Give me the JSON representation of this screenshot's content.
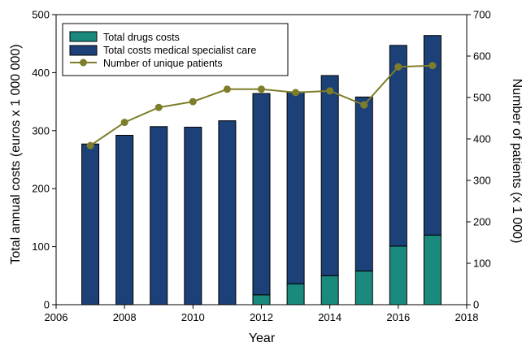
{
  "chart_data": {
    "type": "bar",
    "stacked": true,
    "x": [
      2007,
      2008,
      2009,
      2010,
      2011,
      2012,
      2013,
      2014,
      2015,
      2016,
      2017
    ],
    "xlabel": "Year",
    "xlim": [
      2006,
      2018
    ],
    "xticks": [
      2006,
      2008,
      2010,
      2012,
      2014,
      2016,
      2018
    ],
    "ylabel": "Total annual costs (euros x 1 000 000)",
    "ylim": [
      0,
      500
    ],
    "yticks": [
      0,
      100,
      200,
      300,
      400,
      500
    ],
    "y2label": "Number of patients (x 1 000)",
    "y2lim": [
      0,
      700
    ],
    "y2ticks": [
      0,
      100,
      200,
      300,
      400,
      500,
      600,
      700
    ],
    "series": [
      {
        "name": "Total drugs costs",
        "kind": "bar",
        "axis": "left",
        "color": "#1a8a7e",
        "values": [
          0,
          0,
          0,
          0,
          0,
          17,
          36,
          50,
          58,
          101,
          120
        ]
      },
      {
        "name": "Total costs medical specialist care",
        "kind": "bar",
        "axis": "left",
        "color": "#1c4178",
        "values": [
          277,
          292,
          307,
          306,
          317,
          347,
          331,
          345,
          300,
          346,
          344
        ]
      },
      {
        "name": "Number of unique patients",
        "kind": "line",
        "axis": "right",
        "color": "#7d7d2a",
        "values": [
          384,
          440,
          476,
          490,
          520,
          520,
          512,
          516,
          482,
          574,
          577
        ]
      }
    ],
    "legend_position": "top-left",
    "grid": false
  }
}
